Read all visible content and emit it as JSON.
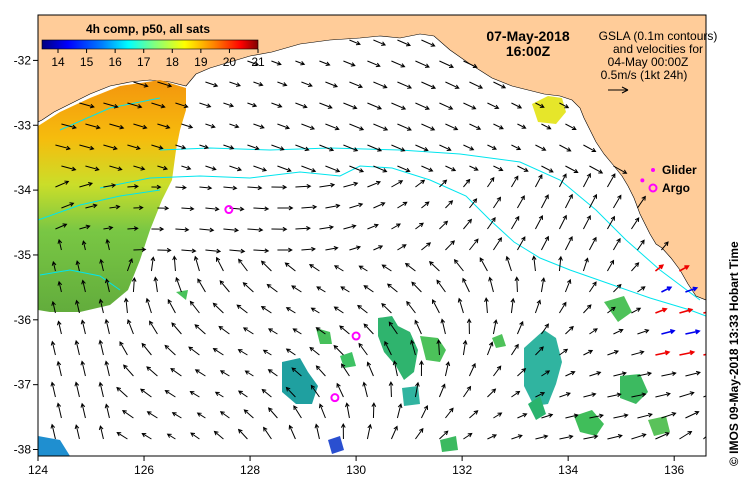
{
  "title": {
    "date": "07-May-2018",
    "time": "16:00Z"
  },
  "colorbar": {
    "title": "4h comp, p50, all sats",
    "ticks": [
      "14",
      "15",
      "16",
      "17",
      "18",
      "19",
      "20",
      "21"
    ],
    "colors": [
      "#00007f",
      "#0000ff",
      "#0080ff",
      "#00ffff",
      "#80ff80",
      "#ffff00",
      "#ff8000",
      "#ff0000",
      "#7f0000"
    ]
  },
  "gsla": {
    "lines": [
      "GSLA (0.1m contours)",
      "and velocities for",
      "04-May 00:00Z",
      "0.5m/s (1kt 24h)"
    ]
  },
  "legend": {
    "glider": "Glider",
    "argo": "Argo"
  },
  "credit": "© IMOS 09-May-2018 13:33 Hobart Time",
  "axes": {
    "x_ticks": [
      "124",
      "126",
      "128",
      "130",
      "132",
      "134",
      "136"
    ],
    "y_ticks": [
      "-32",
      "-33",
      "-34",
      "-35",
      "-36",
      "-37",
      "-38"
    ],
    "x_range": [
      124,
      136.6
    ],
    "y_range": [
      -38.1,
      -31.3
    ]
  },
  "argo_floats": [
    {
      "lon": 127.6,
      "lat": -34.3
    },
    {
      "lon": 130.0,
      "lat": -36.25
    },
    {
      "lon": 129.6,
      "lat": -37.2
    }
  ],
  "glider_pos": {
    "lon": 135.4,
    "lat": -33.85
  },
  "colors": {
    "land": "#ffcc99",
    "contour": "#00e5ee",
    "argo": "#ff00ff",
    "arrow_black": "#000000",
    "arrow_red": "#ee0000",
    "arrow_blue": "#0000ee"
  }
}
